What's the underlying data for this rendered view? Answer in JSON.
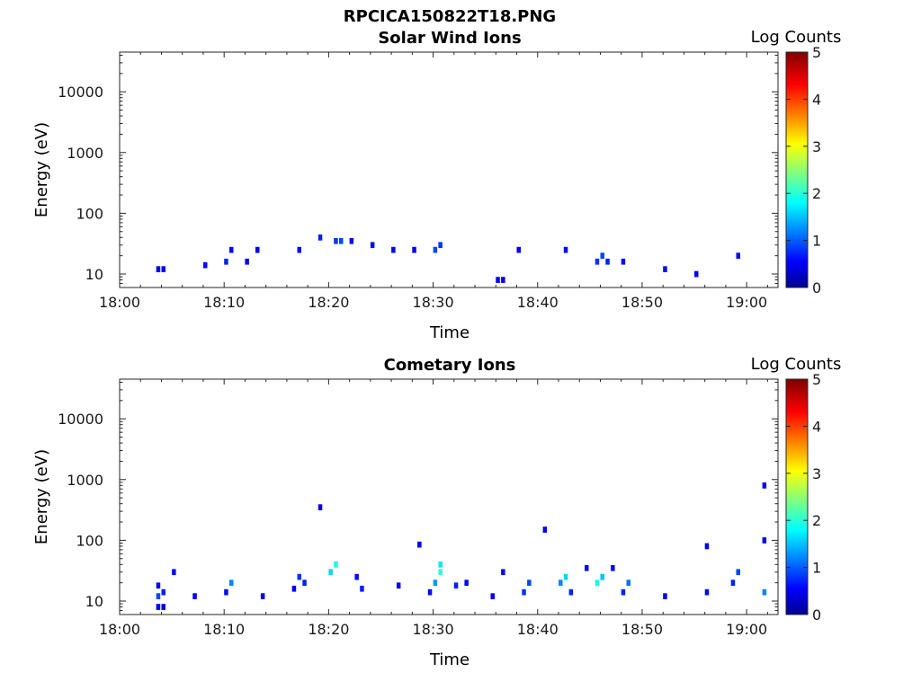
{
  "figure_title": "RPCICA150822T18.PNG",
  "colors": {
    "scale": [
      "#00008f",
      "#0000ff",
      "#00ffff",
      "#ffff00",
      "#ff0000",
      "#800000"
    ],
    "axis": "#262626"
  },
  "chart_data": [
    {
      "type": "heatmap",
      "title": "Solar Wind Ions",
      "xlabel": "Time",
      "ylabel": "Energy (eV)",
      "yscale": "log",
      "ylim": [
        6,
        45000
      ],
      "xlim": [
        "18:00",
        "19:03"
      ],
      "x_ticks": [
        "18:00",
        "18:10",
        "18:20",
        "18:30",
        "18:40",
        "18:50",
        "19:00"
      ],
      "y_ticks": [
        "10",
        "100",
        "1000",
        "10000"
      ],
      "colorbar": {
        "label": "Log Counts",
        "range": [
          0,
          5
        ],
        "ticks": [
          "0",
          "1",
          "2",
          "3",
          "4",
          "5"
        ]
      },
      "grid": false,
      "cells": [
        [
          "18:03:30",
          12,
          0.5
        ],
        [
          "18:04:00",
          12,
          0.5
        ],
        [
          "18:08:00",
          14,
          0.6
        ],
        [
          "18:10:00",
          16,
          0.7
        ],
        [
          "18:10:30",
          25,
          0.6
        ],
        [
          "18:12:00",
          16,
          0.5
        ],
        [
          "18:13:00",
          25,
          0.5
        ],
        [
          "18:17:00",
          25,
          0.6
        ],
        [
          "18:19:00",
          40,
          0.7
        ],
        [
          "18:20:30",
          35,
          0.8
        ],
        [
          "18:21:00",
          35,
          0.9
        ],
        [
          "18:22:00",
          35,
          0.6
        ],
        [
          "18:24:00",
          30,
          0.6
        ],
        [
          "18:26:00",
          25,
          0.5
        ],
        [
          "18:28:00",
          25,
          0.5
        ],
        [
          "18:30:00",
          25,
          0.9
        ],
        [
          "18:30:30",
          30,
          0.8
        ],
        [
          "18:36:00",
          8,
          0.5
        ],
        [
          "18:36:30",
          8,
          0.5
        ],
        [
          "18:38:00",
          25,
          0.5
        ],
        [
          "18:42:30",
          25,
          0.6
        ],
        [
          "18:45:30",
          16,
          0.8
        ],
        [
          "18:46:00",
          20,
          0.9
        ],
        [
          "18:46:30",
          16,
          0.7
        ],
        [
          "18:48:00",
          16,
          0.6
        ],
        [
          "18:52:00",
          12,
          0.6
        ],
        [
          "18:55:00",
          10,
          0.5
        ],
        [
          "18:59:00",
          20,
          0.6
        ]
      ],
      "scattered_counts": 0.3
    },
    {
      "type": "heatmap",
      "title": "Cometary Ions",
      "xlabel": "Time",
      "ylabel": "Energy (eV)",
      "yscale": "log",
      "ylim": [
        6,
        45000
      ],
      "xlim": [
        "18:00",
        "19:03"
      ],
      "x_ticks": [
        "18:00",
        "18:10",
        "18:20",
        "18:30",
        "18:40",
        "18:50",
        "19:00"
      ],
      "y_ticks": [
        "10",
        "100",
        "1000",
        "10000"
      ],
      "colorbar": {
        "label": "Log Counts",
        "range": [
          0,
          5
        ],
        "ticks": [
          "0",
          "1",
          "2",
          "3",
          "4",
          "5"
        ]
      },
      "grid": false,
      "cells": [
        [
          "18:03:30",
          8,
          0.5
        ],
        [
          "18:03:30",
          12,
          0.9
        ],
        [
          "18:03:30",
          18,
          0.6
        ],
        [
          "18:04:00",
          8,
          0.4
        ],
        [
          "18:04:00",
          14,
          0.7
        ],
        [
          "18:05:00",
          30,
          0.6
        ],
        [
          "18:07:00",
          12,
          0.5
        ],
        [
          "18:10:00",
          14,
          0.6
        ],
        [
          "18:10:30",
          20,
          1.2
        ],
        [
          "18:13:30",
          12,
          0.5
        ],
        [
          "18:16:30",
          16,
          0.5
        ],
        [
          "18:17:00",
          25,
          0.8
        ],
        [
          "18:17:30",
          20,
          0.7
        ],
        [
          "18:19:00",
          350,
          0.5
        ],
        [
          "18:20:00",
          30,
          1.6
        ],
        [
          "18:20:30",
          40,
          1.9
        ],
        [
          "18:22:30",
          25,
          0.6
        ],
        [
          "18:23:00",
          16,
          0.7
        ],
        [
          "18:26:30",
          18,
          0.5
        ],
        [
          "18:28:30",
          85,
          0.5
        ],
        [
          "18:29:30",
          14,
          0.6
        ],
        [
          "18:30:00",
          20,
          1.3
        ],
        [
          "18:30:30",
          30,
          2.0
        ],
        [
          "18:30:30",
          40,
          1.7
        ],
        [
          "18:32:00",
          18,
          0.7
        ],
        [
          "18:33:00",
          20,
          0.6
        ],
        [
          "18:35:30",
          12,
          0.5
        ],
        [
          "18:36:30",
          30,
          0.6
        ],
        [
          "18:38:30",
          14,
          0.8
        ],
        [
          "18:39:00",
          20,
          0.9
        ],
        [
          "18:40:30",
          150,
          0.5
        ],
        [
          "18:42:00",
          20,
          1.2
        ],
        [
          "18:42:30",
          25,
          1.6
        ],
        [
          "18:43:00",
          14,
          0.7
        ],
        [
          "18:44:30",
          35,
          0.6
        ],
        [
          "18:45:30",
          20,
          1.9
        ],
        [
          "18:46:00",
          25,
          1.5
        ],
        [
          "18:47:00",
          35,
          0.6
        ],
        [
          "18:48:00",
          14,
          0.7
        ],
        [
          "18:48:30",
          20,
          1.1
        ],
        [
          "18:52:00",
          12,
          0.5
        ],
        [
          "18:56:00",
          80,
          0.5
        ],
        [
          "18:56:00",
          14,
          0.6
        ],
        [
          "18:58:30",
          20,
          0.7
        ],
        [
          "18:59:00",
          30,
          0.9
        ],
        [
          "19:01:30",
          800,
          0.5
        ],
        [
          "19:01:30",
          100,
          0.5
        ],
        [
          "19:01:30",
          14,
          1.2
        ]
      ]
    }
  ]
}
